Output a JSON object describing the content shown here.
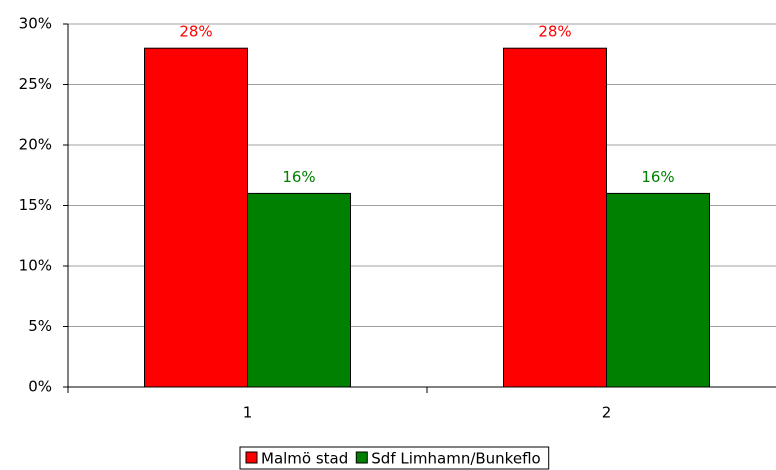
{
  "chart_data": {
    "type": "bar",
    "categories": [
      "1",
      "2"
    ],
    "series": [
      {
        "name": "Malmö stad",
        "color": "#ff0000",
        "values": [
          28,
          28
        ],
        "value_labels": [
          "28%",
          "28%"
        ]
      },
      {
        "name": "Sdf Limhamn/Bunkeflo",
        "color": "#008000",
        "values": [
          16,
          16
        ],
        "value_labels": [
          "16%",
          "16%"
        ]
      }
    ],
    "ylim": [
      0,
      30
    ],
    "yticks": [
      {
        "value": 0,
        "label": "0%"
      },
      {
        "value": 5,
        "label": "5%"
      },
      {
        "value": 10,
        "label": "10%"
      },
      {
        "value": 15,
        "label": "15%"
      },
      {
        "value": 20,
        "label": "20%"
      },
      {
        "value": 25,
        "label": "25%"
      },
      {
        "value": 30,
        "label": "30%"
      }
    ],
    "grid": true,
    "legend": "bottom"
  }
}
